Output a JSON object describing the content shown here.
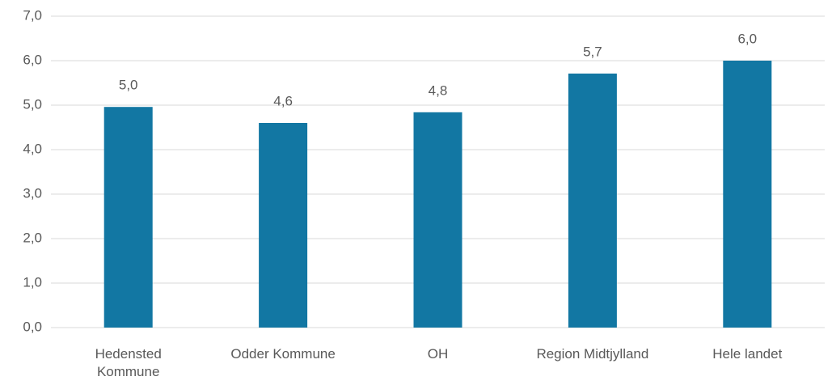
{
  "chart_data": {
    "type": "bar",
    "categories": [
      "Hedensted Kommune",
      "Odder Kommune",
      "OH",
      "Region Midtjylland",
      "Hele landet"
    ],
    "values": [
      4.96,
      4.6,
      4.84,
      5.71,
      6.0
    ],
    "value_labels": [
      "5,0",
      "4,6",
      "4,8",
      "5,7",
      "6,0"
    ],
    "color": "#1277a3",
    "ylim": [
      0,
      7
    ],
    "yticks": [
      {
        "value": 0,
        "label": "0,0"
      },
      {
        "value": 1,
        "label": "1,0"
      },
      {
        "value": 2,
        "label": "2,0"
      },
      {
        "value": 3,
        "label": "3,0"
      },
      {
        "value": 4,
        "label": "4,0"
      },
      {
        "value": 5,
        "label": "5,0"
      },
      {
        "value": 6,
        "label": "6,0"
      },
      {
        "value": 7,
        "label": "7,0"
      }
    ],
    "grid": true
  }
}
